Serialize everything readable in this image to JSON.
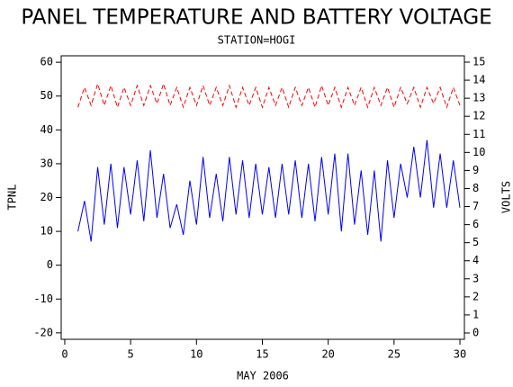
{
  "chart_data": {
    "type": "line",
    "title": "PANEL TEMPERATURE AND BATTERY VOLTAGE",
    "subtitle": "STATION=HOGI",
    "x_label": "MAY 2006",
    "y_label": "TPNL",
    "y2_label": "VOLTS",
    "x": [
      1,
      1.5,
      2,
      2.5,
      3,
      3.5,
      4,
      4.5,
      5,
      5.5,
      6,
      6.5,
      7,
      7.5,
      8,
      8.5,
      9,
      9.5,
      10,
      10.5,
      11,
      11.5,
      12,
      12.5,
      13,
      13.5,
      14,
      14.5,
      15,
      15.5,
      16,
      16.5,
      17,
      17.5,
      18,
      18.5,
      19,
      19.5,
      20,
      20.5,
      21,
      21.5,
      22,
      22.5,
      23,
      23.5,
      24,
      24.5,
      25,
      25.5,
      26,
      26.5,
      27,
      27.5,
      28,
      28.5,
      29,
      29.5,
      30
    ],
    "series": [
      {
        "name": "TPNL",
        "color": "#0000ff",
        "dashed": false,
        "axis": "y",
        "values": [
          10,
          19,
          7,
          29,
          12,
          30,
          11,
          29,
          15,
          31,
          13,
          34,
          14,
          27,
          11,
          18,
          9,
          25,
          12,
          32,
          14,
          27,
          13,
          32,
          15,
          31,
          14,
          30,
          15,
          29,
          14,
          30,
          15,
          31,
          14,
          30,
          13,
          32,
          15,
          33,
          10,
          33,
          12,
          28,
          9,
          28,
          7,
          31,
          14,
          30,
          20,
          35,
          20,
          37,
          17,
          33,
          17,
          31,
          17
        ]
      },
      {
        "name": "VOLTS",
        "color": "#ff0000",
        "dashed": true,
        "axis": "y2",
        "values": [
          12.5,
          13.6,
          12.6,
          13.8,
          12.6,
          13.7,
          12.5,
          13.6,
          12.6,
          13.7,
          12.6,
          13.7,
          12.7,
          13.8,
          12.6,
          13.6,
          12.5,
          13.6,
          12.6,
          13.7,
          12.6,
          13.6,
          12.6,
          13.7,
          12.5,
          13.6,
          12.6,
          13.6,
          12.5,
          13.6,
          12.6,
          13.6,
          12.5,
          13.6,
          12.6,
          13.6,
          12.5,
          13.7,
          12.6,
          13.6,
          12.5,
          13.6,
          12.6,
          13.6,
          12.5,
          13.6,
          12.6,
          13.6,
          12.5,
          13.6,
          12.7,
          13.6,
          12.5,
          13.6,
          12.7,
          13.6,
          12.5,
          13.6,
          12.6
        ]
      }
    ],
    "xlim": [
      -0.27,
      30.34
    ],
    "xticks": [
      0,
      5,
      10,
      15,
      20,
      25,
      30
    ],
    "ylim": [
      -21.9,
      61.9
    ],
    "yticks": [
      -20,
      -10,
      0,
      10,
      20,
      30,
      40,
      50,
      60
    ],
    "y2lim": [
      -0.35,
      15.35
    ],
    "y2ticks": [
      0,
      1,
      2,
      3,
      4,
      5,
      6,
      7,
      8,
      9,
      10,
      11,
      12,
      13,
      14,
      15
    ]
  }
}
